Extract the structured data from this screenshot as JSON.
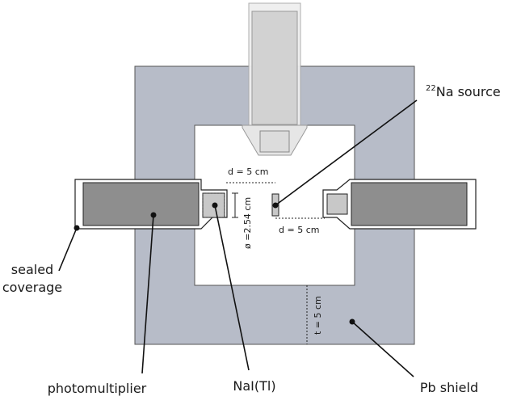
{
  "labels": {
    "source_prefix": "22",
    "source_text": "Na source",
    "sealed_line1": "sealed",
    "sealed_line2": "coverage",
    "photomultiplier": "photomultiplier",
    "nai": "NaI(Tl)",
    "pb_shield": "Pb shield"
  },
  "dimensions": {
    "top_distance": "d = 5 cm",
    "bottom_distance": "d = 5 cm",
    "crystal_diameter": "ø =2.54 cm",
    "shield_thickness": "t = 5 cm"
  },
  "colors": {
    "shield": "#b7bcc8",
    "pmt_body": "#8e8e8e",
    "crystal": "#c8c8c8",
    "top_detector": "#d2d2d2"
  }
}
